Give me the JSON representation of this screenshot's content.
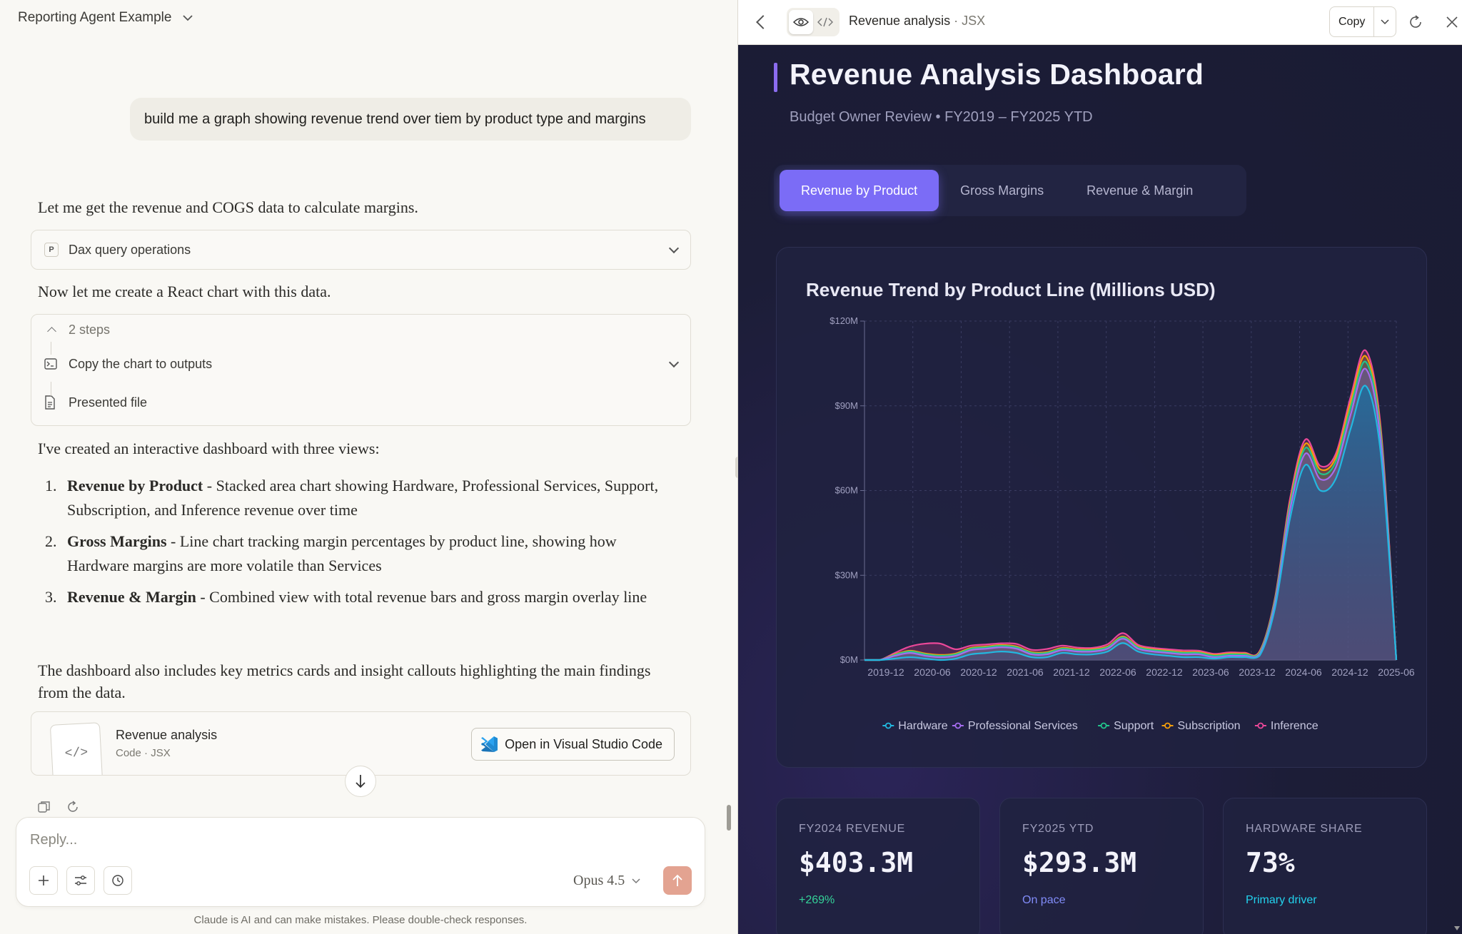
{
  "conversation": {
    "title": "Reporting Agent Example"
  },
  "user_message": "build me a graph showing revenue trend over tiem by product type and margins",
  "assistant": {
    "msg1": "Let me get the revenue and COGS data to calculate margins.",
    "tool1": {
      "badge": "P",
      "label": "Dax query operations"
    },
    "msg2": "Now let me create a React chart with this data.",
    "steps": {
      "count_label": "2 steps",
      "step1": "Copy the chart to outputs",
      "step2": "Presented file"
    },
    "msg3": "I've created an interactive dashboard with three views:",
    "views": [
      {
        "num": "1.",
        "title": "Revenue by Product",
        "desc": " - Stacked area chart showing Hardware, Professional Services, Support, Subscription, and Inference revenue over time"
      },
      {
        "num": "2.",
        "title": "Gross Margins",
        "desc": " - Line chart tracking margin percentages by product line, showing how Hardware margins are more volatile than Services"
      },
      {
        "num": "3.",
        "title": "Revenue & Margin",
        "desc": " - Combined view with total revenue bars and gross margin overlay line"
      }
    ],
    "msg4": "The dashboard also includes key metrics cards and insight callouts highlighting the main findings from the data.",
    "artifact_card": {
      "title": "Revenue analysis",
      "subtitle": "Code · JSX",
      "open_label": "Open in Visual Studio Code"
    }
  },
  "composer": {
    "placeholder": "Reply...",
    "model": "Opus 4.5",
    "disclaimer": "Claude is AI and can make mistakes. Please double-check responses."
  },
  "artifact_header": {
    "title": "Revenue analysis",
    "type": "· JSX",
    "copy_label": "Copy"
  },
  "dashboard": {
    "title": "Revenue Analysis Dashboard",
    "subtitle": "Budget Owner Review • FY2019 – FY2025 YTD",
    "tabs": [
      "Revenue by Product",
      "Gross Margins",
      "Revenue & Margin"
    ],
    "active_tab": 0,
    "metrics": [
      {
        "label": "FY2024 REVENUE",
        "value": "$403.3M",
        "note": "+269%",
        "note_color": "#34d399"
      },
      {
        "label": "FY2025 YTD",
        "value": "$293.3M",
        "note": "On pace",
        "note_color": "#818cf8"
      },
      {
        "label": "HARDWARE SHARE",
        "value": "73%",
        "note": "Primary driver",
        "note_color": "#22d3ee"
      }
    ]
  },
  "chart_data": {
    "type": "area",
    "title": "Revenue Trend by Product Line (Millions USD)",
    "xlabel": "",
    "ylabel": "",
    "y_unit": "M",
    "ylim": [
      0,
      120
    ],
    "y_ticks": [
      0,
      30,
      60,
      90,
      120
    ],
    "y_tick_labels": [
      "$0M",
      "$30M",
      "$60M",
      "$90M",
      "$120M"
    ],
    "x_tick_labels": [
      "2019-12",
      "2020-06",
      "2020-12",
      "2021-06",
      "2021-12",
      "2022-06",
      "2022-12",
      "2023-06",
      "2023-12",
      "2024-06",
      "2024-12",
      "2025-06"
    ],
    "stacked": true,
    "grid": true,
    "legend_position": "bottom",
    "series": [
      {
        "name": "Hardware",
        "color": "#22b8e0",
        "values": [
          0,
          0,
          0.5,
          1,
          0.5,
          0,
          0.5,
          2,
          2.5,
          3,
          2.5,
          1,
          1,
          2.5,
          2,
          2,
          3,
          6,
          3,
          2,
          1.5,
          1,
          1,
          0.5,
          1,
          1,
          1.5,
          18,
          50,
          69,
          60,
          64,
          82,
          97,
          72,
          0
        ]
      },
      {
        "name": "Professional Services",
        "color": "#a56cf0",
        "values": [
          0,
          0,
          1,
          1.5,
          1,
          1,
          1,
          1.5,
          1.5,
          1.5,
          1.5,
          1,
          1,
          1,
          1,
          1,
          1,
          1.5,
          1,
          1,
          1,
          1,
          1,
          0.5,
          0.5,
          0.5,
          0.5,
          1.5,
          3,
          4,
          4,
          4,
          5,
          6,
          4,
          0
        ]
      },
      {
        "name": "Support",
        "color": "#22c58b",
        "values": [
          0,
          0,
          0.3,
          0.5,
          0.5,
          0.5,
          0.5,
          0.5,
          0.5,
          0.5,
          0.5,
          0.5,
          0.5,
          0.5,
          0.5,
          0.5,
          0.5,
          0.5,
          0.5,
          0.5,
          0.5,
          0.5,
          0.5,
          0.5,
          0.5,
          0.5,
          0.5,
          1,
          1.5,
          2,
          2,
          2,
          2.5,
          2.5,
          2,
          0
        ]
      },
      {
        "name": "Subscription",
        "color": "#f59e0b",
        "values": [
          0,
          0,
          0.2,
          0.3,
          0.3,
          0.3,
          0.3,
          0.3,
          0.3,
          0.3,
          0.3,
          0.3,
          0.3,
          0.3,
          0.3,
          0.3,
          0.3,
          0.3,
          0.3,
          0.3,
          0.3,
          0.3,
          0.3,
          0.3,
          0.3,
          0.3,
          0.3,
          0.5,
          1,
          1.5,
          1.5,
          1.5,
          2,
          2,
          1.5,
          0
        ]
      },
      {
        "name": "Inference",
        "color": "#ec4899",
        "values": [
          0,
          0,
          0.5,
          1.5,
          3.5,
          4,
          1.5,
          0.8,
          0.7,
          0.6,
          0.9,
          0.8,
          1.1,
          0.8,
          0.6,
          0.5,
          0.8,
          1.2,
          0.6,
          0.5,
          0.5,
          0.6,
          0.5,
          0.4,
          0.4,
          0.3,
          0.3,
          0.6,
          1.5,
          1.5,
          1.2,
          1.3,
          1.8,
          2,
          1.5,
          0
        ]
      }
    ]
  }
}
